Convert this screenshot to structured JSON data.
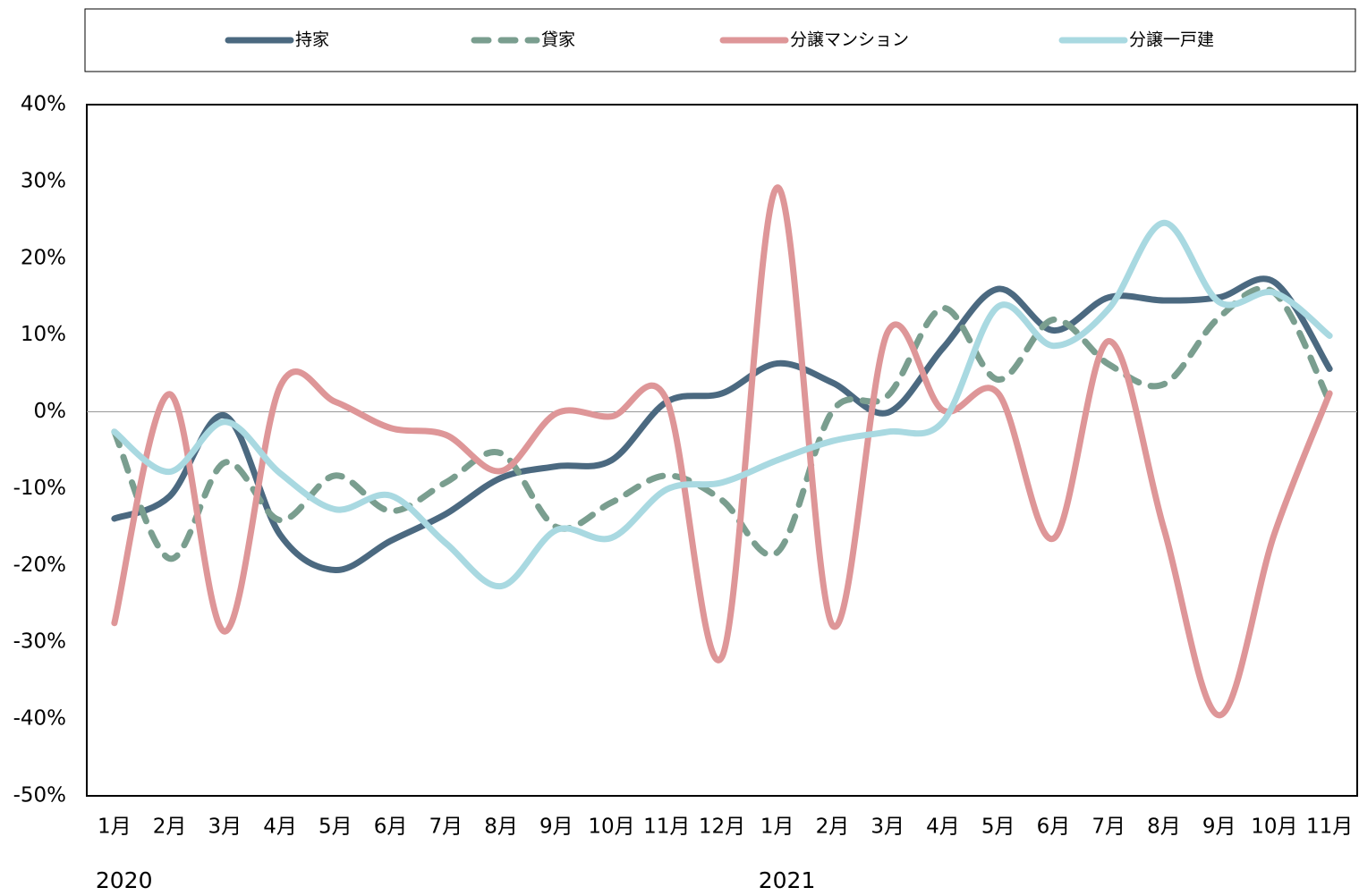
{
  "chart_data": {
    "type": "line",
    "categories": [
      "1月",
      "2月",
      "3月",
      "4月",
      "5月",
      "6月",
      "7月",
      "8月",
      "9月",
      "10月",
      "11月",
      "12月",
      "1月",
      "2月",
      "3月",
      "4月",
      "5月",
      "6月",
      "7月",
      "8月",
      "9月",
      "10月",
      "11月"
    ],
    "x_groups": [
      {
        "label": "2020",
        "start": 0
      },
      {
        "label": "2021",
        "start": 12
      }
    ],
    "series": [
      {
        "name": "持家",
        "color": "#4b6980",
        "line_style": "solid",
        "values": [
          -13.9,
          -11,
          -0.5,
          -16,
          -20.6,
          -16.8,
          -13.3,
          -8.6,
          -7.1,
          -6.3,
          1.3,
          2.4,
          6.3,
          3.8,
          -0.1,
          8.3,
          16,
          10.6,
          14.9,
          14.5,
          14.9,
          16.9,
          5.6
        ]
      },
      {
        "name": "貸家",
        "color": "#7a9e8f",
        "line_style": "dashed",
        "values": [
          -2.6,
          -19.1,
          -6.6,
          -14.1,
          -8.3,
          -12.9,
          -9.2,
          -5.4,
          -15,
          -11.8,
          -8.3,
          -11.5,
          -18.3,
          0.1,
          2.1,
          13.5,
          4.2,
          12,
          6.2,
          3.6,
          12.3,
          15.5,
          1.3
        ]
      },
      {
        "name": "分譲マンション",
        "color": "#de9698",
        "line_style": "solid",
        "values": [
          -27.5,
          2.3,
          -28.6,
          3.3,
          1.3,
          -2.1,
          -3,
          -7.7,
          -0.2,
          -0.6,
          1.5,
          -31.9,
          29.2,
          -27.8,
          10.4,
          0.2,
          2.4,
          -16.5,
          9.2,
          -15.2,
          -39.5,
          -15.9,
          2.4
        ]
      },
      {
        "name": "分譲一戸建",
        "color": "#a9d9e1",
        "line_style": "solid",
        "values": [
          -2.6,
          -7.8,
          -1.3,
          -8,
          -12.7,
          -10.9,
          -17.1,
          -22.7,
          -15.4,
          -16.4,
          -10.1,
          -9.2,
          -6.3,
          -3.8,
          -2.6,
          -1.3,
          13.7,
          8.6,
          13.4,
          24.6,
          14.3,
          15.5,
          9.9
        ]
      }
    ],
    "ylim": [
      -50,
      40
    ],
    "yticks": [
      {
        "value": 40,
        "label": "40%"
      },
      {
        "value": 30,
        "label": "30%"
      },
      {
        "value": 20,
        "label": "20%"
      },
      {
        "value": 10,
        "label": "10%"
      },
      {
        "value": 0,
        "label": "0%"
      },
      {
        "value": -10,
        "label": "-10%"
      },
      {
        "value": -20,
        "label": "-20%"
      },
      {
        "value": -30,
        "label": "-30%"
      },
      {
        "value": -40,
        "label": "-40%"
      },
      {
        "value": -50,
        "label": "-50%"
      }
    ],
    "grid": false,
    "zero_line": true,
    "legend": "top"
  }
}
